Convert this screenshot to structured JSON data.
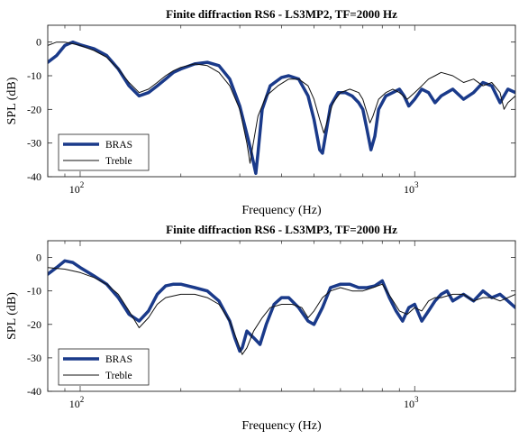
{
  "chart_data": [
    {
      "type": "line",
      "title": "Finite diffraction RS6 - LS3MP2, TF=2000 Hz",
      "xlabel": "Frequency (Hz)",
      "ylabel": "SPL (dB)",
      "xscale": "log",
      "xlim": [
        80,
        2000
      ],
      "ylim": [
        -40,
        5
      ],
      "yticks": [
        0,
        -10,
        -20,
        -30,
        -40
      ],
      "ytick_labels": [
        "0",
        "-10",
        "-20",
        "-30",
        "-40"
      ],
      "xticks": [
        {
          "value": 100,
          "base": "10",
          "exp": "2"
        },
        {
          "value": 1000,
          "base": "10",
          "exp": "3"
        }
      ],
      "grid": false,
      "legend": "bottom-left",
      "series": [
        {
          "name": "BRAS",
          "color": "#1a3a8a",
          "width": 3.5,
          "points": [
            [
              80,
              -6
            ],
            [
              85,
              -4
            ],
            [
              90,
              -1
            ],
            [
              95,
              0
            ],
            [
              100,
              -0.8
            ],
            [
              110,
              -2
            ],
            [
              120,
              -4
            ],
            [
              130,
              -8
            ],
            [
              140,
              -13
            ],
            [
              150,
              -16
            ],
            [
              160,
              -15
            ],
            [
              170,
              -13
            ],
            [
              180,
              -11
            ],
            [
              190,
              -9
            ],
            [
              200,
              -8
            ],
            [
              220,
              -6.5
            ],
            [
              240,
              -6
            ],
            [
              260,
              -7
            ],
            [
              280,
              -11
            ],
            [
              300,
              -19
            ],
            [
              320,
              -30
            ],
            [
              330,
              -36
            ],
            [
              335,
              -39
            ],
            [
              340,
              -33
            ],
            [
              350,
              -20
            ],
            [
              370,
              -13
            ],
            [
              400,
              -10.5
            ],
            [
              420,
              -10
            ],
            [
              450,
              -11
            ],
            [
              480,
              -16
            ],
            [
              500,
              -23
            ],
            [
              520,
              -32
            ],
            [
              530,
              -33
            ],
            [
              545,
              -26
            ],
            [
              560,
              -19
            ],
            [
              590,
              -15
            ],
            [
              620,
              -15
            ],
            [
              650,
              -16
            ],
            [
              680,
              -18
            ],
            [
              700,
              -20
            ],
            [
              720,
              -26
            ],
            [
              740,
              -32
            ],
            [
              760,
              -28
            ],
            [
              780,
              -20
            ],
            [
              820,
              -16
            ],
            [
              860,
              -15
            ],
            [
              900,
              -14
            ],
            [
              930,
              -16
            ],
            [
              960,
              -19
            ],
            [
              1000,
              -17
            ],
            [
              1050,
              -14
            ],
            [
              1100,
              -15
            ],
            [
              1150,
              -18
            ],
            [
              1200,
              -16
            ],
            [
              1300,
              -14
            ],
            [
              1400,
              -17
            ],
            [
              1500,
              -15
            ],
            [
              1600,
              -12
            ],
            [
              1700,
              -13
            ],
            [
              1800,
              -18
            ],
            [
              1900,
              -14
            ],
            [
              2000,
              -15
            ]
          ]
        },
        {
          "name": "Treble",
          "color": "#111111",
          "width": 1,
          "points": [
            [
              80,
              -1
            ],
            [
              85,
              0
            ],
            [
              90,
              0
            ],
            [
              95,
              -0.5
            ],
            [
              100,
              -1
            ],
            [
              110,
              -2.5
            ],
            [
              120,
              -4.5
            ],
            [
              130,
              -8
            ],
            [
              140,
              -12
            ],
            [
              150,
              -15
            ],
            [
              160,
              -14
            ],
            [
              170,
              -12
            ],
            [
              180,
              -10
            ],
            [
              190,
              -8.5
            ],
            [
              200,
              -7.5
            ],
            [
              220,
              -6.5
            ],
            [
              240,
              -7
            ],
            [
              260,
              -9
            ],
            [
              280,
              -13
            ],
            [
              300,
              -20
            ],
            [
              315,
              -30
            ],
            [
              322,
              -36
            ],
            [
              328,
              -31
            ],
            [
              340,
              -22
            ],
            [
              360,
              -16
            ],
            [
              390,
              -13
            ],
            [
              420,
              -11
            ],
            [
              450,
              -11
            ],
            [
              480,
              -13
            ],
            [
              500,
              -17
            ],
            [
              520,
              -23
            ],
            [
              535,
              -27
            ],
            [
              550,
              -23
            ],
            [
              570,
              -18
            ],
            [
              600,
              -15
            ],
            [
              640,
              -14
            ],
            [
              680,
              -15
            ],
            [
              700,
              -17
            ],
            [
              720,
              -21
            ],
            [
              735,
              -24
            ],
            [
              750,
              -22
            ],
            [
              780,
              -17
            ],
            [
              820,
              -15
            ],
            [
              860,
              -14
            ],
            [
              900,
              -15
            ],
            [
              950,
              -17
            ],
            [
              1000,
              -15
            ],
            [
              1050,
              -13
            ],
            [
              1100,
              -11
            ],
            [
              1150,
              -10
            ],
            [
              1200,
              -9
            ],
            [
              1300,
              -10
            ],
            [
              1400,
              -12
            ],
            [
              1500,
              -11
            ],
            [
              1600,
              -13
            ],
            [
              1700,
              -12
            ],
            [
              1800,
              -15
            ],
            [
              1850,
              -20
            ],
            [
              1900,
              -18
            ],
            [
              2000,
              -16
            ]
          ]
        }
      ]
    },
    {
      "type": "line",
      "title": "Finite diffraction RS6 - LS3MP3, TF=2000 Hz",
      "xlabel": "Frequency (Hz)",
      "ylabel": "SPL (dB)",
      "xscale": "log",
      "xlim": [
        80,
        2000
      ],
      "ylim": [
        -40,
        5
      ],
      "yticks": [
        0,
        -10,
        -20,
        -30,
        -40
      ],
      "ytick_labels": [
        "0",
        "-10",
        "-20",
        "-30",
        "-40"
      ],
      "xticks": [
        {
          "value": 100,
          "base": "10",
          "exp": "2"
        },
        {
          "value": 1000,
          "base": "10",
          "exp": "3"
        }
      ],
      "grid": false,
      "legend": "bottom-left",
      "series": [
        {
          "name": "BRAS",
          "color": "#1a3a8a",
          "width": 3.5,
          "points": [
            [
              80,
              -5
            ],
            [
              85,
              -3
            ],
            [
              90,
              -1
            ],
            [
              95,
              -1.5
            ],
            [
              100,
              -3
            ],
            [
              110,
              -5.5
            ],
            [
              120,
              -8
            ],
            [
              130,
              -12
            ],
            [
              140,
              -17
            ],
            [
              150,
              -19
            ],
            [
              160,
              -16
            ],
            [
              170,
              -11
            ],
            [
              180,
              -8.5
            ],
            [
              190,
              -8
            ],
            [
              200,
              -8
            ],
            [
              220,
              -9
            ],
            [
              240,
              -10
            ],
            [
              260,
              -13
            ],
            [
              280,
              -19
            ],
            [
              290,
              -24
            ],
            [
              300,
              -28
            ],
            [
              305,
              -27
            ],
            [
              315,
              -22
            ],
            [
              330,
              -24
            ],
            [
              345,
              -26
            ],
            [
              360,
              -20
            ],
            [
              380,
              -14
            ],
            [
              400,
              -12
            ],
            [
              420,
              -12
            ],
            [
              450,
              -15
            ],
            [
              480,
              -19
            ],
            [
              500,
              -20
            ],
            [
              530,
              -15
            ],
            [
              560,
              -9
            ],
            [
              600,
              -8
            ],
            [
              640,
              -8
            ],
            [
              680,
              -9
            ],
            [
              720,
              -9
            ],
            [
              760,
              -8.5
            ],
            [
              800,
              -7
            ],
            [
              840,
              -12
            ],
            [
              880,
              -16
            ],
            [
              920,
              -19
            ],
            [
              960,
              -15
            ],
            [
              1000,
              -14
            ],
            [
              1050,
              -19
            ],
            [
              1100,
              -16
            ],
            [
              1150,
              -13
            ],
            [
              1200,
              -11
            ],
            [
              1250,
              -10
            ],
            [
              1300,
              -13
            ],
            [
              1400,
              -11
            ],
            [
              1500,
              -13
            ],
            [
              1600,
              -10
            ],
            [
              1700,
              -12
            ],
            [
              1800,
              -11
            ],
            [
              1900,
              -13
            ],
            [
              2000,
              -15
            ]
          ]
        },
        {
          "name": "Treble",
          "color": "#111111",
          "width": 1,
          "points": [
            [
              80,
              -3
            ],
            [
              90,
              -3.5
            ],
            [
              100,
              -4.5
            ],
            [
              110,
              -6
            ],
            [
              120,
              -8
            ],
            [
              130,
              -11
            ],
            [
              140,
              -16
            ],
            [
              150,
              -21
            ],
            [
              160,
              -18
            ],
            [
              170,
              -14
            ],
            [
              180,
              -12
            ],
            [
              200,
              -11
            ],
            [
              220,
              -11
            ],
            [
              240,
              -12
            ],
            [
              260,
              -14
            ],
            [
              280,
              -19
            ],
            [
              295,
              -25
            ],
            [
              305,
              -29
            ],
            [
              315,
              -27
            ],
            [
              330,
              -22
            ],
            [
              350,
              -18
            ],
            [
              370,
              -15
            ],
            [
              400,
              -14
            ],
            [
              430,
              -14
            ],
            [
              460,
              -15
            ],
            [
              480,
              -18
            ],
            [
              500,
              -16
            ],
            [
              530,
              -12
            ],
            [
              560,
              -10
            ],
            [
              600,
              -9
            ],
            [
              650,
              -10
            ],
            [
              700,
              -10
            ],
            [
              750,
              -9
            ],
            [
              800,
              -8
            ],
            [
              850,
              -12
            ],
            [
              900,
              -16
            ],
            [
              950,
              -17
            ],
            [
              1000,
              -15
            ],
            [
              1050,
              -16
            ],
            [
              1100,
              -13
            ],
            [
              1150,
              -12
            ],
            [
              1200,
              -12
            ],
            [
              1300,
              -11
            ],
            [
              1400,
              -11
            ],
            [
              1500,
              -13
            ],
            [
              1600,
              -12
            ],
            [
              1700,
              -12
            ],
            [
              1800,
              -13
            ],
            [
              1900,
              -12
            ],
            [
              2000,
              -11
            ]
          ]
        }
      ]
    }
  ]
}
